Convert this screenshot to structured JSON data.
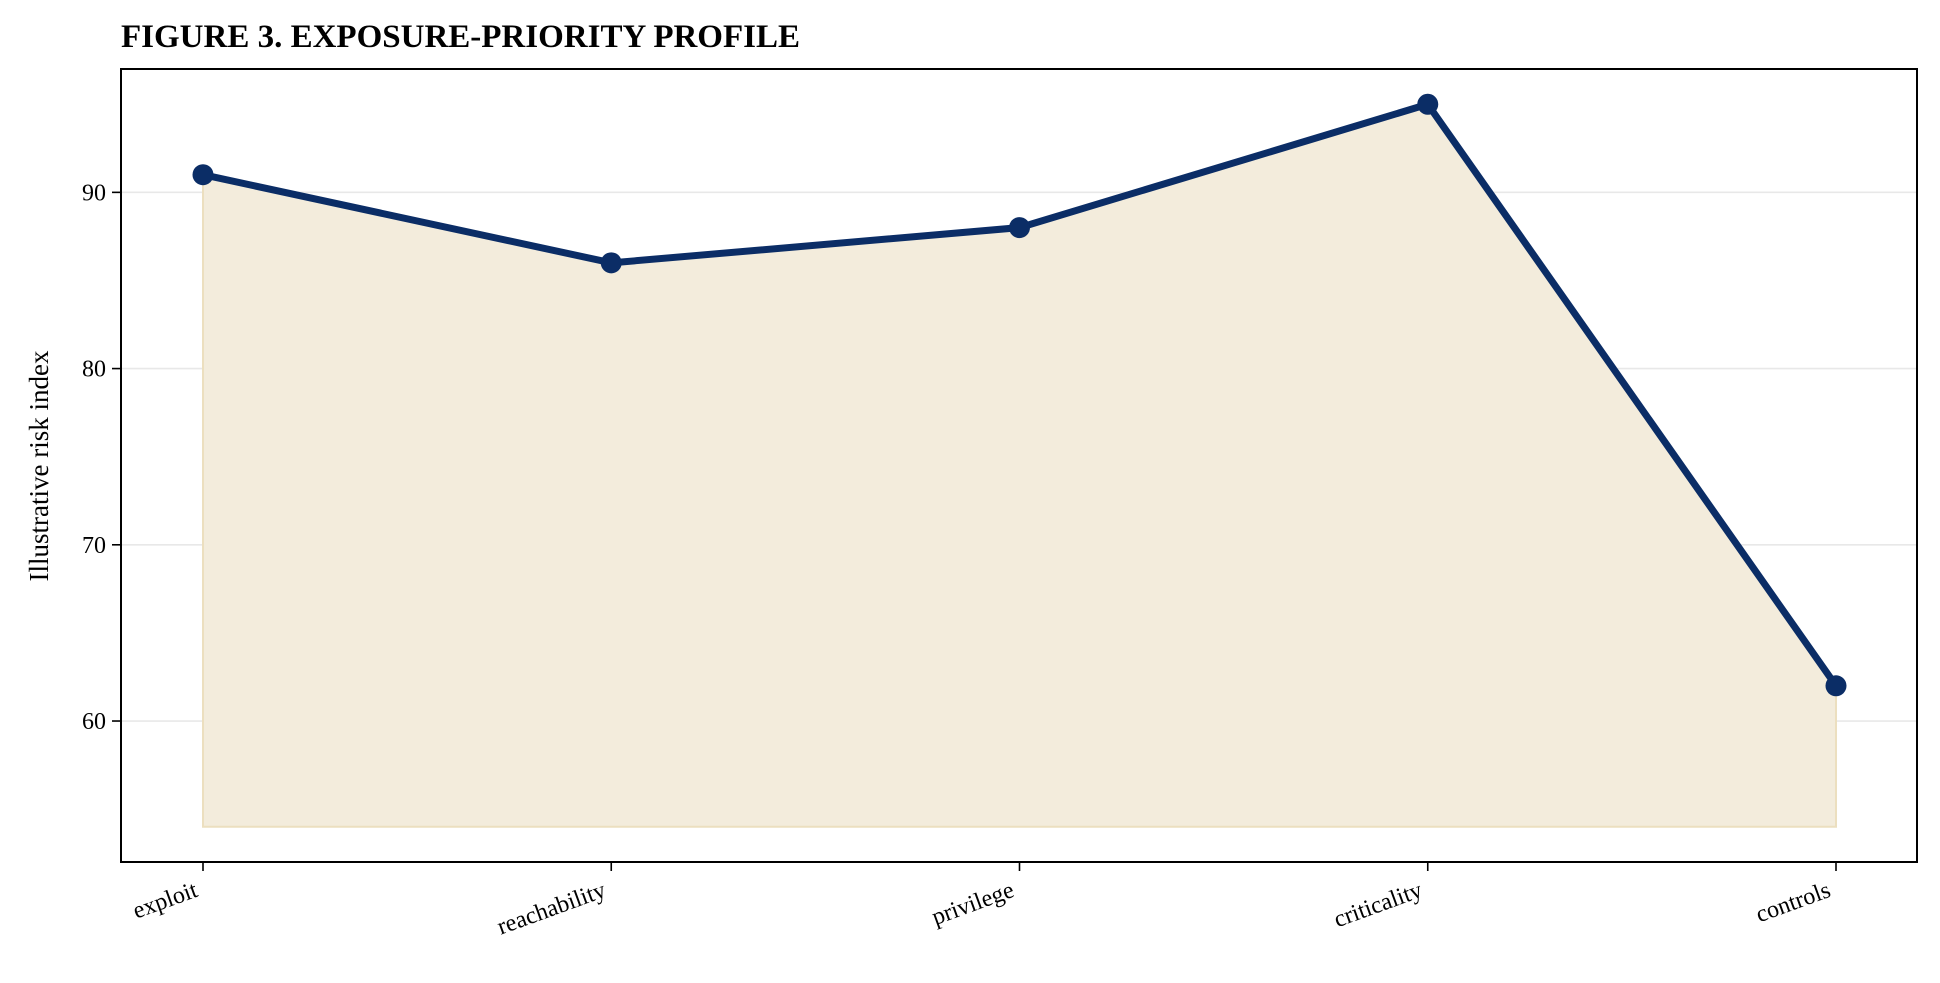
{
  "chart_data": {
    "type": "line",
    "title": "FIGURE 3. EXPOSURE-PRIORITY PROFILE",
    "xlabel": "",
    "ylabel": "Illustrative risk index",
    "categories": [
      "exploit",
      "reachability",
      "privilege",
      "criticality",
      "controls"
    ],
    "series": [
      {
        "values": [
          91,
          86,
          88,
          95,
          62
        ]
      }
    ],
    "fill_baseline": 54,
    "ylim": [
      52,
      97
    ],
    "yticks": [
      60,
      70,
      80,
      90
    ],
    "grid": "horizontal",
    "legend": "none",
    "colors": {
      "line": "#0b2d66",
      "fill": "#f3ecdc",
      "fill_edge": "#ecdfbf",
      "grid": "#e8e8e8",
      "axis": "#000000"
    }
  }
}
